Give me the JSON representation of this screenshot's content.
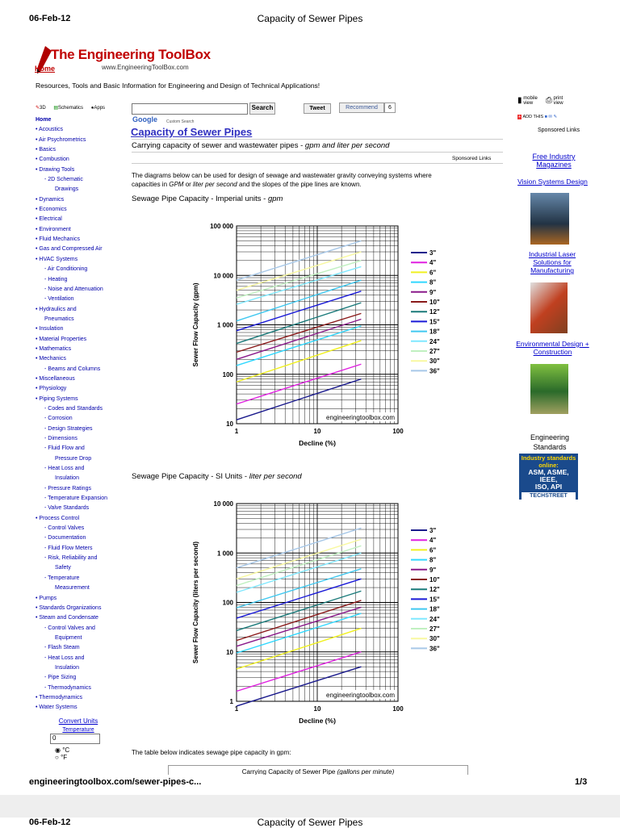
{
  "print_header": {
    "date": "06-Feb-12",
    "title": "Capacity of Sewer Pipes"
  },
  "print_footer": {
    "url": "engineeringtoolbox.com/sewer-pipes-c...",
    "page": "1/3"
  },
  "page2_header": {
    "date": "06-Feb-12",
    "title": "Capacity of Sewer Pipes"
  },
  "logo": {
    "name": "The Engineering ToolBox",
    "site": "www.EngineeringToolBox.com",
    "home": "Home"
  },
  "tagline": "Resources, Tools and Basic Information for Engineering and Design of Technical Applications!",
  "sidebar": {
    "top_icons": [
      "3D",
      "Schematics",
      "Apps"
    ],
    "items": [
      {
        "t": "Home",
        "lvl": 0
      },
      {
        "t": "• Acoustics",
        "lvl": 0
      },
      {
        "t": "• Air Psychrometrics",
        "lvl": 0
      },
      {
        "t": "• Basics",
        "lvl": 0
      },
      {
        "t": "• Combustion",
        "lvl": 0
      },
      {
        "t": "• Drawing Tools",
        "lvl": 0
      },
      {
        "t": "- 2D Schematic",
        "lvl": 1
      },
      {
        "t": "Drawings",
        "lvl": 2
      },
      {
        "t": "• Dynamics",
        "lvl": 0
      },
      {
        "t": "• Economics",
        "lvl": 0
      },
      {
        "t": "• Electrical",
        "lvl": 0
      },
      {
        "t": "• Environment",
        "lvl": 0
      },
      {
        "t": "• Fluid Mechanics",
        "lvl": 0
      },
      {
        "t": "• Gas and Compressed Air",
        "lvl": 0
      },
      {
        "t": "• HVAC Systems",
        "lvl": 0
      },
      {
        "t": "- Air Conditioning",
        "lvl": 1
      },
      {
        "t": "- Heating",
        "lvl": 1
      },
      {
        "t": "- Noise and Attenuation",
        "lvl": 1
      },
      {
        "t": "- Ventilation",
        "lvl": 1
      },
      {
        "t": "• Hydraulics and",
        "lvl": 0
      },
      {
        "t": "Pneumatics",
        "lvl": 1
      },
      {
        "t": "• Insulation",
        "lvl": 0
      },
      {
        "t": "• Material Properties",
        "lvl": 0
      },
      {
        "t": "• Mathematics",
        "lvl": 0
      },
      {
        "t": "• Mechanics",
        "lvl": 0
      },
      {
        "t": "- Beams and Columns",
        "lvl": 1
      },
      {
        "t": "• Miscellaneous",
        "lvl": 0
      },
      {
        "t": "• Physiology",
        "lvl": 0
      },
      {
        "t": "• Piping Systems",
        "lvl": 0
      },
      {
        "t": "- Codes and Standards",
        "lvl": 1
      },
      {
        "t": "- Corrosion",
        "lvl": 1
      },
      {
        "t": "- Design Strategies",
        "lvl": 1
      },
      {
        "t": "- Dimensions",
        "lvl": 1
      },
      {
        "t": "- Fluid Flow and",
        "lvl": 1
      },
      {
        "t": "Pressure Drop",
        "lvl": 2
      },
      {
        "t": "- Heat Loss and",
        "lvl": 1
      },
      {
        "t": "Insulation",
        "lvl": 2
      },
      {
        "t": "- Pressure Ratings",
        "lvl": 1
      },
      {
        "t": "- Temperature Expansion",
        "lvl": 1
      },
      {
        "t": "- Valve Standards",
        "lvl": 1
      },
      {
        "t": "• Process Control",
        "lvl": 0
      },
      {
        "t": "- Control Valves",
        "lvl": 1
      },
      {
        "t": "- Documentation",
        "lvl": 1
      },
      {
        "t": "- Fluid Flow Meters",
        "lvl": 1
      },
      {
        "t": "- Risk, Reliability and",
        "lvl": 1
      },
      {
        "t": "Safety",
        "lvl": 2
      },
      {
        "t": "- Temperature",
        "lvl": 1
      },
      {
        "t": "Measurement",
        "lvl": 2
      },
      {
        "t": "• Pumps",
        "lvl": 0
      },
      {
        "t": "• Standards Organizations",
        "lvl": 0
      },
      {
        "t": "• Steam and Condensate",
        "lvl": 0
      },
      {
        "t": "- Control Valves and",
        "lvl": 1
      },
      {
        "t": "Equipment",
        "lvl": 2
      },
      {
        "t": "- Flash Steam",
        "lvl": 1
      },
      {
        "t": "- Heat Loss and",
        "lvl": 1
      },
      {
        "t": "Insulation",
        "lvl": 2
      },
      {
        "t": "- Pipe Sizing",
        "lvl": 1
      },
      {
        "t": "- Thermodynamics",
        "lvl": 1
      },
      {
        "t": "• Thermodynamics",
        "lvl": 0
      },
      {
        "t": "• Water Systems",
        "lvl": 0
      }
    ],
    "convert": {
      "title": "Convert Units",
      "label": "Temperature",
      "value": "0",
      "opt_c": "°C",
      "opt_f": "°F"
    }
  },
  "search": {
    "button": "Search",
    "google": "Google",
    "custom": "Custom Search",
    "tweet": "Tweet",
    "recommend": "Recommend",
    "count": "6"
  },
  "article": {
    "title": "Capacity of Sewer Pipes",
    "subtitle_plain": "Carrying capacity of sewer and wastewater pipes - ",
    "subtitle_italic": "gpm and liter per second",
    "sponsored": "Sponsored Links",
    "intro1": "The diagrams below can be used for design of sewage and wastewater gravity conveying systems where",
    "intro2a": "capacities in ",
    "intro2b": "GPM",
    "intro2c": " or ",
    "intro2d": "liter per second",
    "intro2e": " and the slopes of the pipe lines are known.",
    "h1_plain": "Sewage Pipe Capacity - Imperial units - ",
    "h1_italic": "gpm",
    "h2_plain": "Sewage Pipe Capacity - SI Units - ",
    "h2_italic": "liter per second",
    "table_intro": "The table below indicates sewage pipe capacity in gpm:",
    "table_caption_plain": "Carrying Capacity of Sewer Pipe ",
    "table_caption_italic": "(gallons per minute)"
  },
  "right": {
    "mobile": "mobile view",
    "print": "print view",
    "addthis": "ADD THIS",
    "sponsored": "Sponsored Links",
    "ads": [
      "Free Industry Magazines",
      "Vision Systems Design",
      "Industrial Laser Solutions for Manufacturing",
      "Environmental Design + Construction"
    ],
    "eng_std": "Engineering Standards",
    "banner_lines": [
      "Industry standards",
      "online:",
      "ASM, ASME, IEEE,",
      "ISO, API"
    ],
    "banner_brand": "TECHSTREET"
  },
  "chart_data": [
    {
      "type": "line",
      "xscale": "log",
      "yscale": "log",
      "xlabel": "Decline (%)",
      "ylabel": "Sewer Flow Capacity (gpm)",
      "xlim": [
        1,
        100
      ],
      "ylim": [
        10,
        100000
      ],
      "xticks": [
        "1",
        "10",
        "100"
      ],
      "yticks": [
        "10",
        "100",
        "1 000",
        "10 000",
        "100 000"
      ],
      "grid": true,
      "watermark": "engineeringtoolbox.com",
      "legend_position": "right",
      "x_range": [
        1,
        35
      ],
      "series": [
        {
          "name": "3\"",
          "color": "#1a1a8c",
          "start": 12,
          "end": 80
        },
        {
          "name": "4\"",
          "color": "#e020e0",
          "start": 25,
          "end": 160
        },
        {
          "name": "6\"",
          "color": "#f0f020",
          "start": 70,
          "end": 480
        },
        {
          "name": "8\"",
          "color": "#30d8ff",
          "start": 150,
          "end": 950
        },
        {
          "name": "9\"",
          "color": "#8a1a8a",
          "start": 200,
          "end": 1300
        },
        {
          "name": "10\"",
          "color": "#8a1a1a",
          "start": 280,
          "end": 1700
        },
        {
          "name": "12\"",
          "color": "#1a7a7a",
          "start": 420,
          "end": 2800
        },
        {
          "name": "15\"",
          "color": "#1a1ad8",
          "start": 760,
          "end": 4800
        },
        {
          "name": "18\"",
          "color": "#40c8f0",
          "start": 1200,
          "end": 8000
        },
        {
          "name": "24\"",
          "color": "#80e8ff",
          "start": 2600,
          "end": 15000
        },
        {
          "name": "27\"",
          "color": "#c0f0c0",
          "start": 3500,
          "end": 20000
        },
        {
          "name": "30\"",
          "color": "#f8f8a0",
          "start": 5000,
          "end": 30000
        },
        {
          "name": "36\"",
          "color": "#a8c8e8",
          "start": 8000,
          "end": 50000
        }
      ]
    },
    {
      "type": "line",
      "xscale": "log",
      "yscale": "log",
      "xlabel": "Decline (%)",
      "ylabel": "Sewer Flow Capacity (liters per second)",
      "xlim": [
        1,
        100
      ],
      "ylim": [
        1,
        10000
      ],
      "xticks": [
        "1",
        "10",
        "100"
      ],
      "yticks": [
        "1",
        "10",
        "100",
        "1 000",
        "10 000"
      ],
      "grid": true,
      "watermark": "engineeringtoolbox.com",
      "legend_position": "right",
      "x_range": [
        1,
        35
      ],
      "series": [
        {
          "name": "3\"",
          "color": "#1a1a8c",
          "start": 0.8,
          "end": 5
        },
        {
          "name": "4\"",
          "color": "#e020e0",
          "start": 1.6,
          "end": 10
        },
        {
          "name": "6\"",
          "color": "#f0f020",
          "start": 4.5,
          "end": 30
        },
        {
          "name": "8\"",
          "color": "#30d8ff",
          "start": 9.5,
          "end": 60
        },
        {
          "name": "9\"",
          "color": "#8a1a8a",
          "start": 13,
          "end": 80
        },
        {
          "name": "10\"",
          "color": "#8a1a1a",
          "start": 17,
          "end": 110
        },
        {
          "name": "12\"",
          "color": "#1a7a7a",
          "start": 27,
          "end": 170
        },
        {
          "name": "15\"",
          "color": "#1a1ad8",
          "start": 48,
          "end": 300
        },
        {
          "name": "18\"",
          "color": "#40c8f0",
          "start": 78,
          "end": 480
        },
        {
          "name": "24\"",
          "color": "#80e8ff",
          "start": 160,
          "end": 1000
        },
        {
          "name": "27\"",
          "color": "#c0f0c0",
          "start": 220,
          "end": 1400
        },
        {
          "name": "30\"",
          "color": "#f8f8a0",
          "start": 300,
          "end": 1900
        },
        {
          "name": "36\"",
          "color": "#a8c8e8",
          "start": 500,
          "end": 3200
        }
      ]
    }
  ]
}
